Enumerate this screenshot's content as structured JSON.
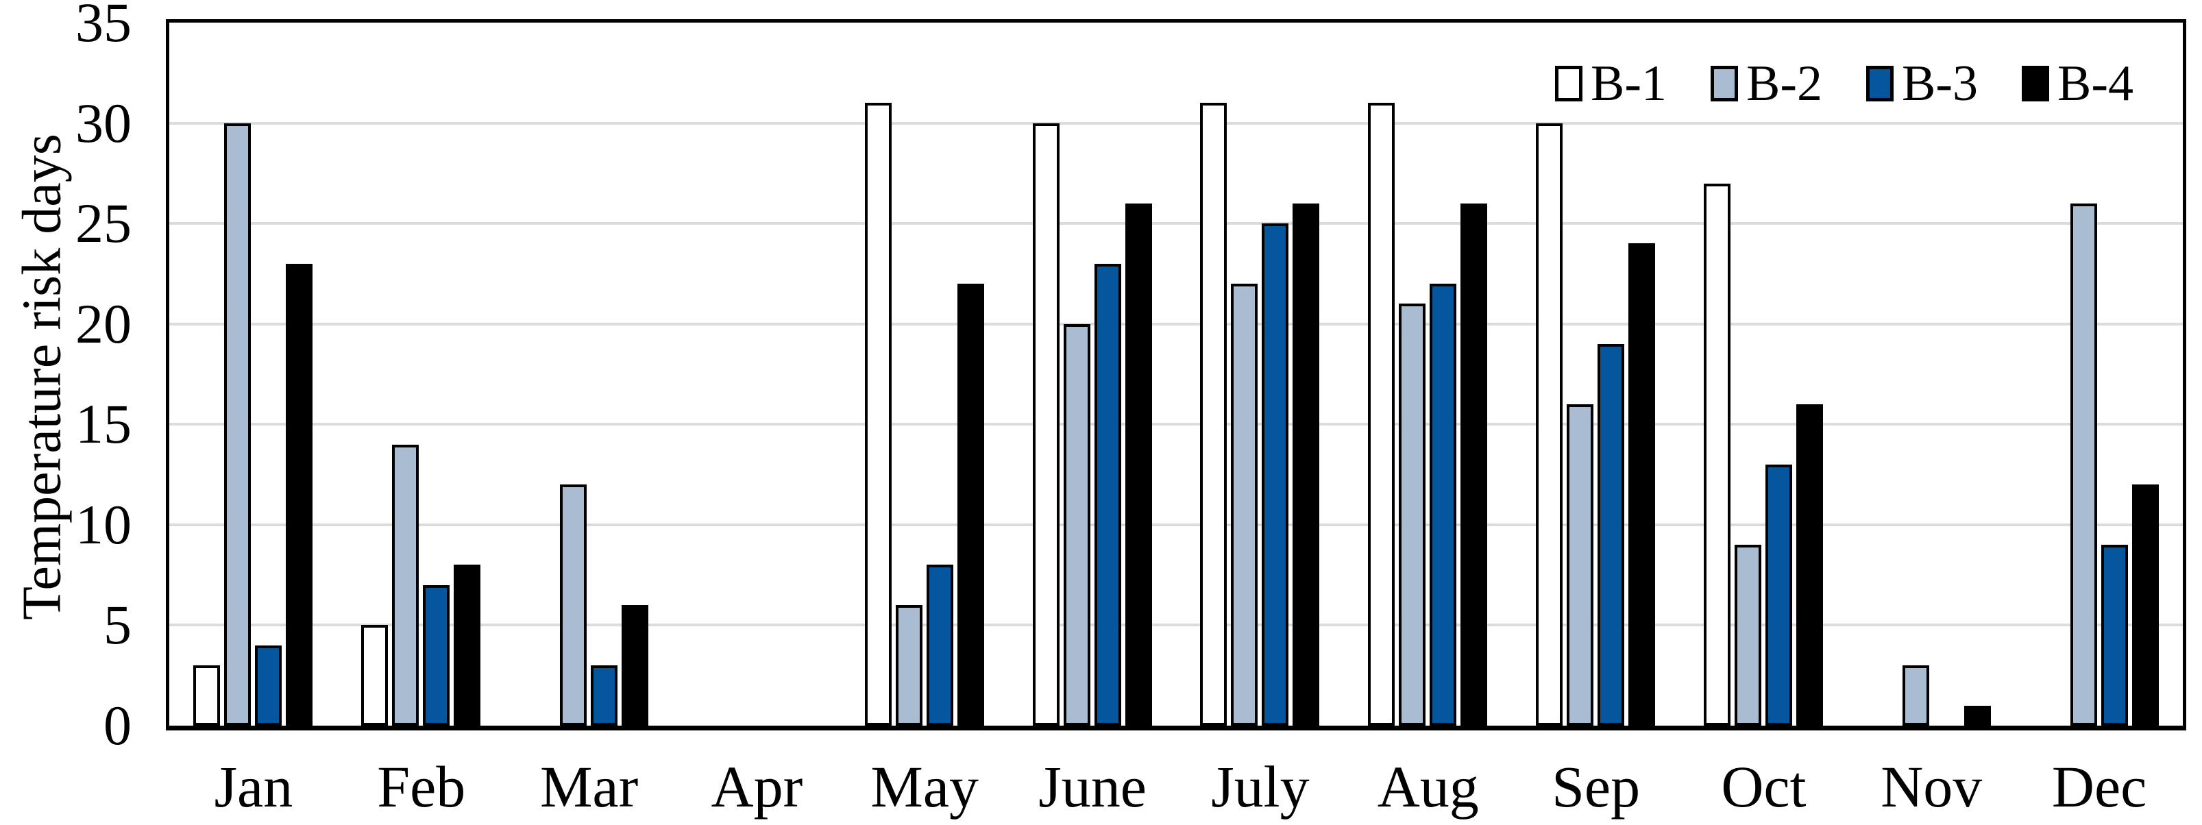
{
  "chart_data": {
    "type": "bar",
    "title": "",
    "ylabel": "Temperature risk days",
    "xlabel": "",
    "ylim": [
      0,
      35
    ],
    "ytick_step": 5,
    "yticks": [
      0,
      5,
      10,
      15,
      20,
      25,
      30,
      35
    ],
    "grid": true,
    "legend_position": "top-right",
    "categories": [
      "Jan",
      "Feb",
      "Mar",
      "Apr",
      "May",
      "June",
      "July",
      "Aug",
      "Sep",
      "Oct",
      "Nov",
      "Dec"
    ],
    "series": [
      {
        "name": "B-1",
        "color": "#ffffff",
        "values": [
          3,
          5,
          0,
          0,
          31,
          30,
          31,
          31,
          30,
          27,
          0,
          0
        ]
      },
      {
        "name": "B-2",
        "color": "#a9bcd2",
        "values": [
          30,
          14,
          12,
          0,
          6,
          20,
          22,
          21,
          16,
          9,
          3,
          26
        ]
      },
      {
        "name": "B-3",
        "color": "#05569d",
        "values": [
          4,
          7,
          3,
          0,
          8,
          23,
          25,
          22,
          19,
          13,
          0,
          9
        ]
      },
      {
        "name": "B-4",
        "color": "#000000",
        "values": [
          23,
          8,
          6,
          0,
          22,
          26,
          26,
          26,
          24,
          16,
          1,
          12
        ]
      }
    ],
    "bar_outline_color": "#000000",
    "gridline_color": "#dcdcdc",
    "axis_color": "#000000"
  }
}
